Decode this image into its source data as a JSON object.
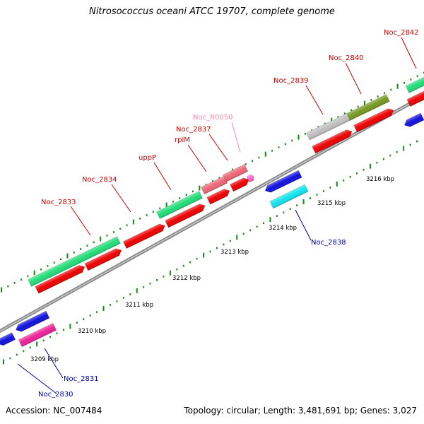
{
  "title": "Nitrosococcus oceani ATCC 19707, complete genome",
  "footer": {
    "accession": "Accession: NC_007484",
    "summary": "Topology: circular; Length: 3,481,691 bp; Genes: 3,027"
  },
  "colors": {
    "backbone": "#8c8c8c",
    "tick": "#138a13",
    "label_forward": "#cc0000",
    "label_reverse": "#0000aa",
    "label_rna": "#ff88aa",
    "cds_forward": "#ee0000",
    "cds_reverse": "#1111dd",
    "cog_green": "#22dd77",
    "cog_pink": "#ee6677",
    "cog_gray": "#c0c0c0",
    "cog_olive": "#779922",
    "cog_cyan": "#11e5ee",
    "cog_magenta": "#ee2299",
    "rna": "#ff66cc"
  },
  "scale": {
    "unit": "kbp",
    "labels": [
      "3209 kbp",
      "3210 kbp",
      "3211 kbp",
      "3212 kbp",
      "3213 kbp",
      "3214 kbp",
      "3215 kbp",
      "3216 kbp"
    ]
  },
  "genes": [
    {
      "label": "Noc_2830",
      "strand": "reverse"
    },
    {
      "label": "Noc_2831",
      "strand": "reverse"
    },
    {
      "label": "Noc_2833",
      "strand": "forward"
    },
    {
      "label": "Noc_2834",
      "strand": "forward"
    },
    {
      "label": "uppP",
      "strand": "forward"
    },
    {
      "label": "rplM",
      "strand": "forward"
    },
    {
      "label": "Noc_2837",
      "strand": "forward"
    },
    {
      "label": "Noc_R0050",
      "strand": "forward"
    },
    {
      "label": "Noc_2838",
      "strand": "reverse"
    },
    {
      "label": "Noc_2839",
      "strand": "forward"
    },
    {
      "label": "Noc_2840",
      "strand": "forward"
    },
    {
      "label": "Noc_2842",
      "strand": "forward"
    }
  ]
}
